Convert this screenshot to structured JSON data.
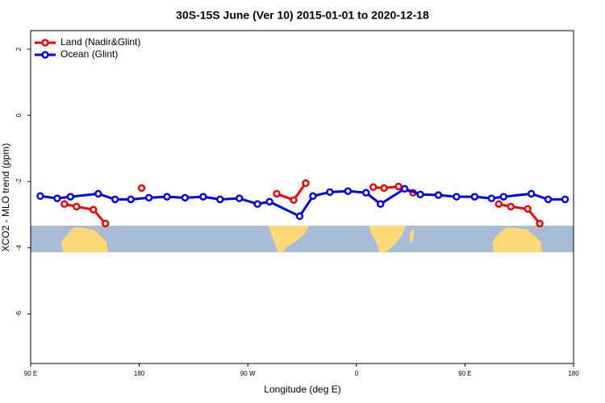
{
  "chart_data": {
    "type": "line",
    "title": "30S-15S June (Ver 10)   2015-01-01 to 2020-12-18",
    "x_label": "Longitude (deg E)",
    "y_label": "XCO2 - MLO trend (ppm)",
    "xlim": [
      90,
      540
    ],
    "ylim": [
      -7.5,
      2.56
    ],
    "xticks": [
      {
        "value": 90,
        "label": "90 E"
      },
      {
        "value": 180,
        "label": "180"
      },
      {
        "value": 270,
        "label": "90 W"
      },
      {
        "value": 360,
        "label": "0"
      },
      {
        "value": 450,
        "label": "90 E"
      },
      {
        "value": 540,
        "label": "180"
      }
    ],
    "yticks": [
      2,
      0,
      -2,
      -4,
      -6
    ],
    "legend": "top-left",
    "series": [
      {
        "name": "Land (Nadir&Glint)",
        "color": "#ee0000",
        "x": [
          118,
          128,
          142,
          152,
          null,
          182,
          null,
          294,
          308,
          318,
          null,
          374,
          383,
          395,
          407,
          null,
          478,
          488,
          502,
          512
        ],
        "values": [
          -2.68,
          -2.76,
          -2.85,
          -3.27,
          null,
          -2.2,
          null,
          -2.37,
          -2.56,
          -2.05,
          null,
          -2.17,
          -2.2,
          -2.15,
          -2.34,
          null,
          -2.68,
          -2.76,
          -2.83,
          -3.27
        ]
      },
      {
        "name": "Ocean (Glint)",
        "color": "#0000ee",
        "x": [
          98,
          112,
          123,
          146,
          160,
          173,
          188,
          203,
          218,
          233,
          247,
          263,
          278,
          288,
          313,
          324,
          338,
          353,
          368,
          380,
          400,
          413,
          428,
          443,
          458,
          472,
          482,
          505,
          519,
          533
        ],
        "values": [
          -2.44,
          -2.51,
          -2.46,
          -2.37,
          -2.54,
          -2.54,
          -2.49,
          -2.46,
          -2.49,
          -2.46,
          -2.54,
          -2.51,
          -2.68,
          -2.61,
          -3.05,
          -2.44,
          -2.32,
          -2.29,
          -2.34,
          -2.68,
          -2.22,
          -2.39,
          -2.41,
          -2.46,
          -2.46,
          -2.51,
          -2.46,
          -2.37,
          -2.54,
          -2.54
        ]
      }
    ]
  }
}
